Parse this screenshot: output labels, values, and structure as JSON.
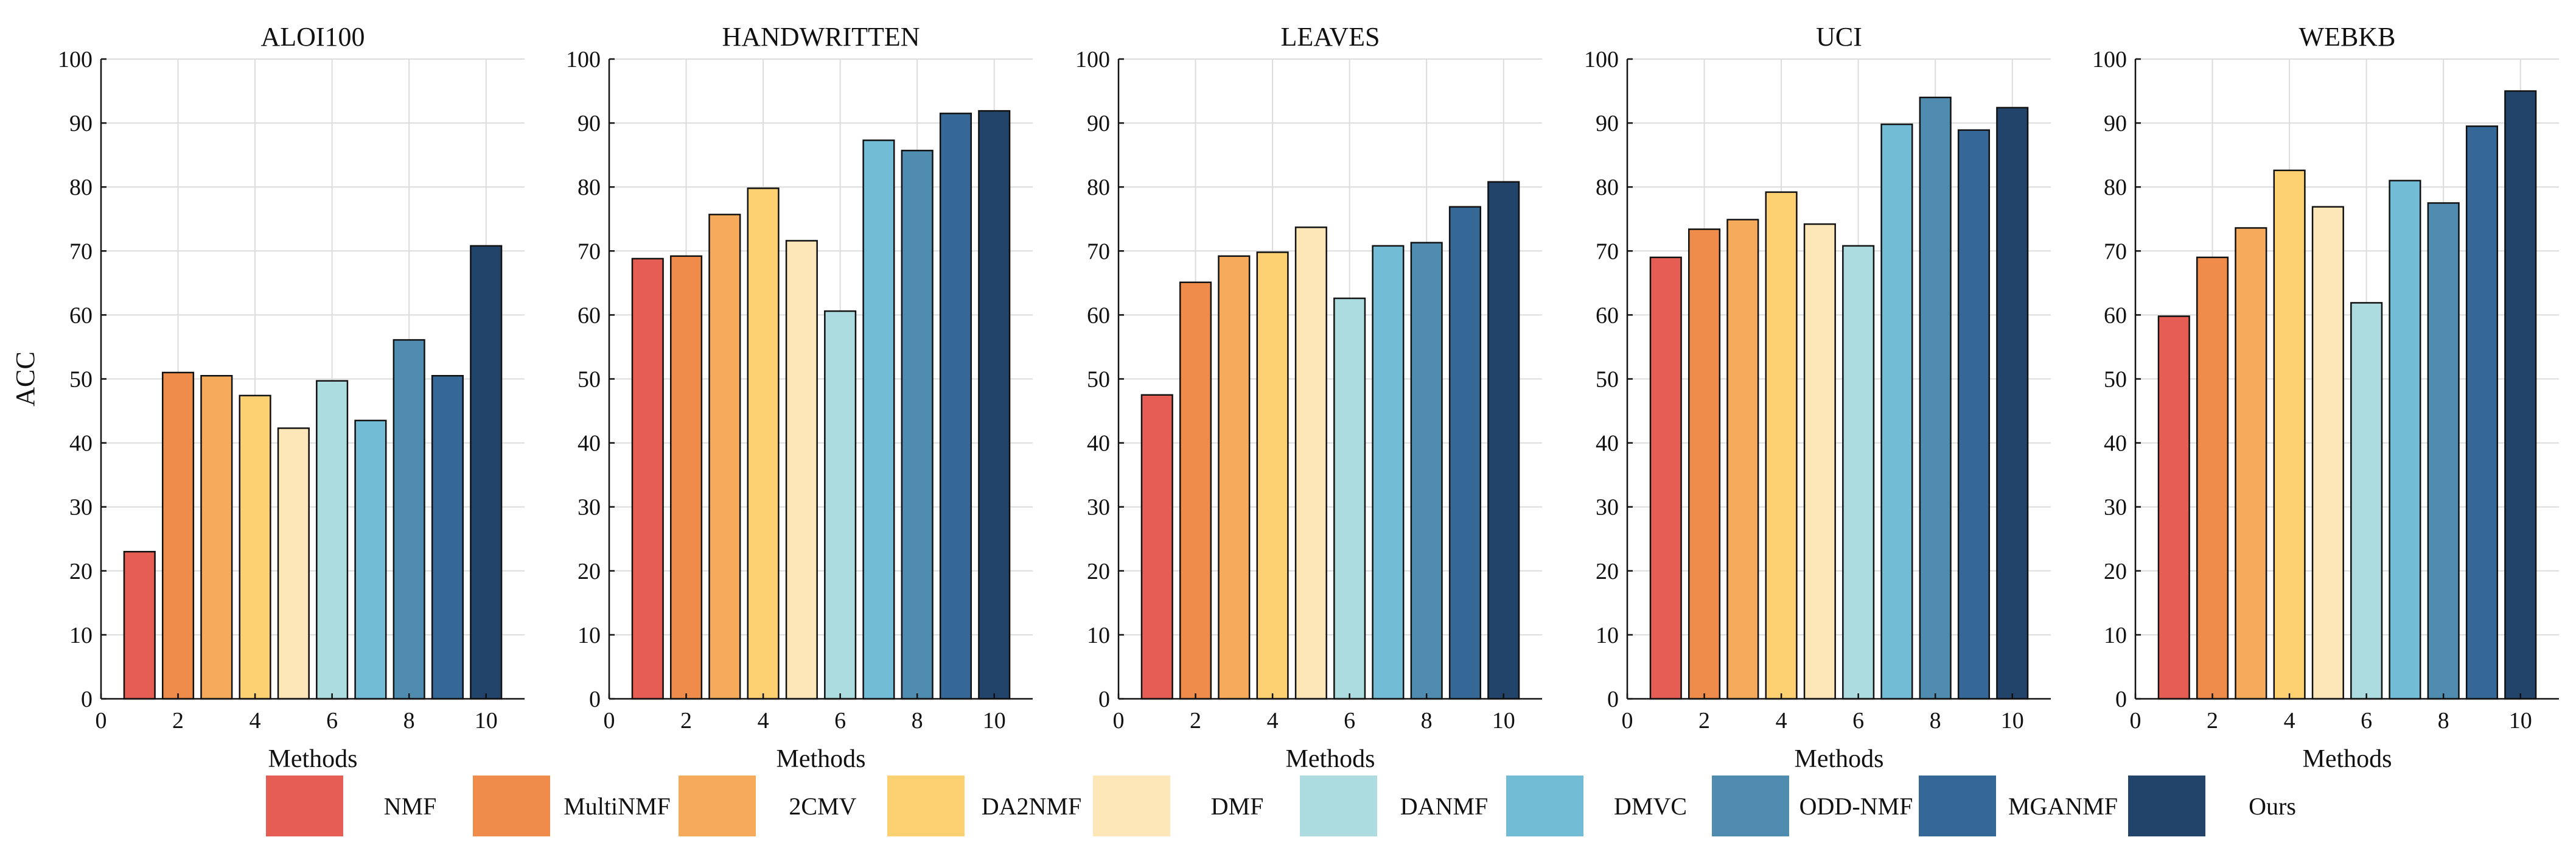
{
  "chart_data": {
    "type": "bar",
    "ylabel": "ACC",
    "xlabel": "Methods",
    "ylim": [
      0,
      100
    ],
    "xlim": [
      0,
      11
    ],
    "yticks": [
      0,
      10,
      20,
      30,
      40,
      50,
      60,
      70,
      80,
      90,
      100
    ],
    "xticks": [
      0,
      2,
      4,
      6,
      8,
      10
    ],
    "grid": true,
    "x": [
      1,
      2,
      3,
      4,
      5,
      6,
      7,
      8,
      9,
      10
    ],
    "methods": [
      "NMF",
      "MultiNMF",
      "2CMV",
      "DA2NMF",
      "DMF",
      "DANMF",
      "DMVC",
      "ODD-NMF",
      "MGANMF",
      "Ours"
    ],
    "colors": [
      "#e65e53",
      "#ef8c4b",
      "#f6aa5c",
      "#fdd071",
      "#fde6b7",
      "#acdce0",
      "#72bcd6",
      "#4f8caf",
      "#366897",
      "#22446a"
    ],
    "panels": [
      {
        "title": "ALOI100",
        "values": [
          23.0,
          51.0,
          50.5,
          47.4,
          42.3,
          49.7,
          43.5,
          56.1,
          50.5,
          70.8
        ]
      },
      {
        "title": "HANDWRITTEN",
        "values": [
          68.8,
          69.2,
          75.7,
          79.8,
          71.6,
          60.6,
          87.3,
          85.7,
          91.5,
          91.9
        ]
      },
      {
        "title": "LEAVES",
        "values": [
          47.5,
          65.1,
          69.2,
          69.8,
          73.7,
          62.6,
          70.8,
          71.3,
          76.9,
          80.8
        ]
      },
      {
        "title": "UCI",
        "values": [
          69.0,
          73.4,
          74.9,
          79.2,
          74.2,
          70.8,
          89.8,
          94.0,
          88.9,
          92.4
        ]
      },
      {
        "title": "WEBKB",
        "values": [
          59.8,
          69.0,
          73.6,
          82.6,
          76.9,
          61.9,
          81.0,
          77.5,
          89.5,
          95.0
        ]
      }
    ]
  }
}
